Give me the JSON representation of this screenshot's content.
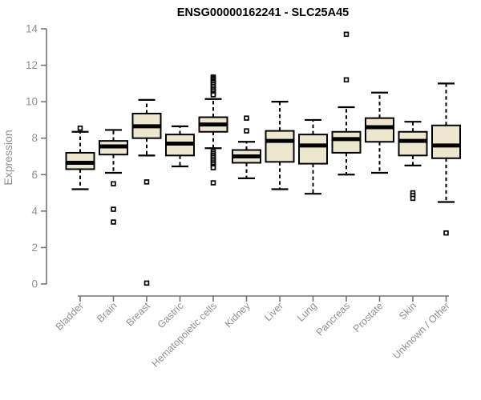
{
  "chart_data": {
    "type": "box",
    "title": "ENSG00000162241 - SLC25A45",
    "ylabel": "Expression",
    "xlabel": "",
    "ylim": [
      0,
      14
    ],
    "yticks": [
      0,
      2,
      4,
      6,
      8,
      10,
      12,
      14
    ],
    "grid": false,
    "legend": null,
    "categories": [
      "Bladder",
      "Brain",
      "Breast",
      "Gastric",
      "Hematopoietic cells",
      "Kidney",
      "Liver",
      "Lung",
      "Pancreas",
      "Prostate",
      "Skin",
      "Unknown / Other"
    ],
    "series": [
      {
        "name": "Bladder",
        "whisker_low": 5.2,
        "q1": 6.3,
        "median": 6.65,
        "q3": 7.2,
        "whisker_high": 8.35,
        "outliers": [
          8.55
        ]
      },
      {
        "name": "Brain",
        "whisker_low": 6.1,
        "q1": 7.1,
        "median": 7.55,
        "q3": 7.85,
        "whisker_high": 8.45,
        "outliers": [
          5.5,
          4.1,
          3.4
        ]
      },
      {
        "name": "Breast",
        "whisker_low": 7.05,
        "q1": 8.0,
        "median": 8.65,
        "q3": 9.35,
        "whisker_high": 10.1,
        "outliers": [
          5.6,
          0.05
        ]
      },
      {
        "name": "Gastric",
        "whisker_low": 6.45,
        "q1": 7.05,
        "median": 7.7,
        "q3": 8.2,
        "whisker_high": 8.65,
        "outliers": []
      },
      {
        "name": "Hematopoietic cells",
        "whisker_low": 7.45,
        "q1": 8.35,
        "median": 8.75,
        "q3": 9.15,
        "whisker_high": 10.15,
        "outliers": [
          11.35,
          11.28,
          11.2,
          11.12,
          11.05,
          10.95,
          10.85,
          10.75,
          10.65,
          10.55,
          10.45,
          10.38,
          7.25,
          7.15,
          7.05,
          6.95,
          6.85,
          6.75,
          6.65,
          6.55,
          6.45,
          6.38,
          5.55
        ]
      },
      {
        "name": "Kidney",
        "whisker_low": 5.8,
        "q1": 6.65,
        "median": 7.0,
        "q3": 7.35,
        "whisker_high": 7.8,
        "outliers": [
          9.1,
          8.4
        ]
      },
      {
        "name": "Liver",
        "whisker_low": 5.2,
        "q1": 6.7,
        "median": 7.85,
        "q3": 8.4,
        "whisker_high": 10.0,
        "outliers": []
      },
      {
        "name": "Lung",
        "whisker_low": 4.95,
        "q1": 6.6,
        "median": 7.6,
        "q3": 8.2,
        "whisker_high": 9.0,
        "outliers": []
      },
      {
        "name": "Pancreas",
        "whisker_low": 6.0,
        "q1": 7.2,
        "median": 7.95,
        "q3": 8.35,
        "whisker_high": 9.7,
        "outliers": [
          13.7,
          11.2
        ]
      },
      {
        "name": "Prostate",
        "whisker_low": 6.1,
        "q1": 7.8,
        "median": 8.6,
        "q3": 9.1,
        "whisker_high": 10.5,
        "outliers": []
      },
      {
        "name": "Skin",
        "whisker_low": 6.5,
        "q1": 7.05,
        "median": 7.85,
        "q3": 8.35,
        "whisker_high": 8.9,
        "outliers": [
          5.0,
          4.85,
          4.7
        ]
      },
      {
        "name": "Unknown / Other",
        "whisker_low": 4.5,
        "q1": 6.9,
        "median": 7.6,
        "q3": 8.7,
        "whisker_high": 11.0,
        "outliers": [
          2.8
        ]
      }
    ],
    "colors": {
      "box_fill": "#EDE7CF",
      "box_border": "#000000",
      "median": "#000000",
      "whisker": "#000000",
      "outlier_stroke": "#000000",
      "outlier_fill": "#FFFFFF",
      "axis_line": "#757575",
      "axis_text": "#909090",
      "title": "#000000",
      "background": "#FFFFFF"
    }
  }
}
